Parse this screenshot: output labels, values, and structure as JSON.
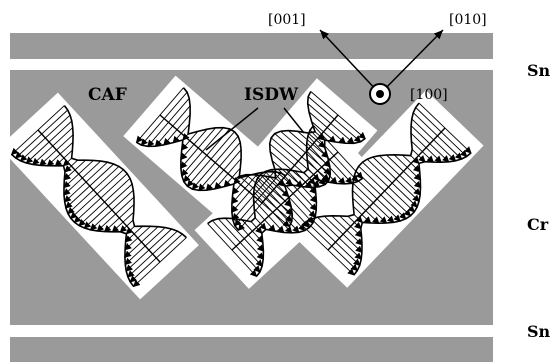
{
  "diagram": {
    "region_labels": {
      "CAF": "CAF",
      "ISDW": "ISDW"
    },
    "directions": {
      "d001": "[001]",
      "d010": "[010]",
      "d100": "[100]"
    },
    "layers": {
      "sn_top": "Sn",
      "cr": "Cr",
      "sn_bottom": "Sn"
    },
    "colors": {
      "layer_gray": "#9a9a9a",
      "band_white": "#ffffff",
      "ink": "#000000"
    }
  }
}
